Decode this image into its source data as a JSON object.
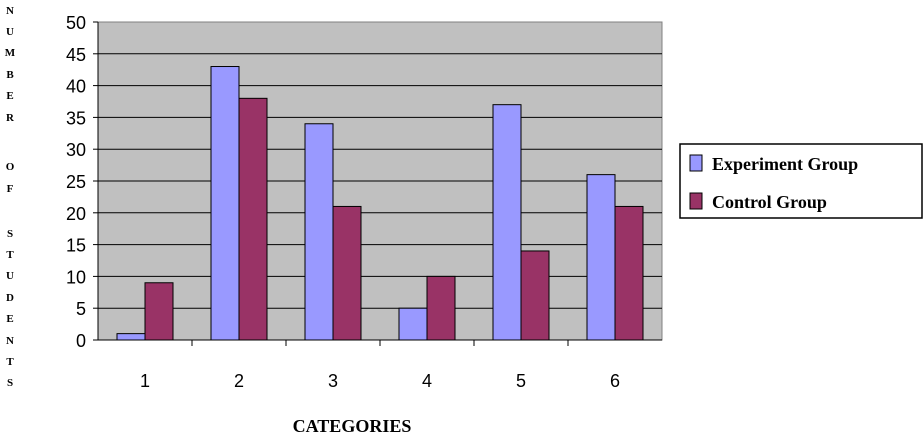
{
  "chart_data": {
    "type": "bar",
    "categories": [
      "1",
      "2",
      "3",
      "4",
      "5",
      "6"
    ],
    "series": [
      {
        "name": "Experiment Group",
        "values": [
          1,
          43,
          34,
          5,
          37,
          26
        ],
        "color": "#9999ff"
      },
      {
        "name": "Control Group",
        "values": [
          9,
          38,
          21,
          10,
          14,
          21
        ],
        "color": "#993366"
      }
    ],
    "xlabel": "CATEGORIES",
    "ylabel": "NUMBER OF STUDENTS",
    "ylim": [
      0,
      50
    ],
    "yticks": [
      "0",
      "5",
      "10",
      "15",
      "20",
      "25",
      "30",
      "35",
      "40",
      "45",
      "50"
    ],
    "grid": true,
    "plot_background": "#c0c0c0",
    "legend_position": "right"
  }
}
